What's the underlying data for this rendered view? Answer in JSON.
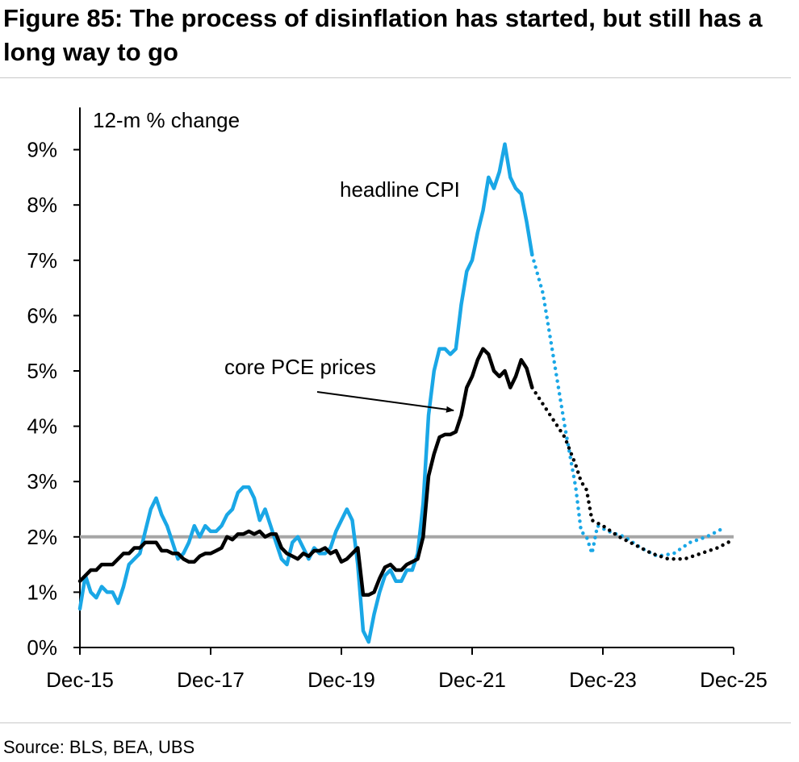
{
  "figure": {
    "title": "Figure 85: The process of disinflation has started, but still has a long way to go",
    "source": "Source: BLS, BEA, UBS"
  },
  "chart_data": {
    "type": "line",
    "unit_label": "12-m % change",
    "x_start": "2015-12",
    "x_end": "2025-12",
    "x_ticks": [
      "Dec-15",
      "Dec-17",
      "Dec-19",
      "Dec-21",
      "Dec-23",
      "Dec-25"
    ],
    "y_ticks": [
      "0%",
      "1%",
      "2%",
      "3%",
      "4%",
      "5%",
      "6%",
      "7%",
      "8%",
      "9%"
    ],
    "ylim": [
      0,
      9.5
    ],
    "reference_line": {
      "value": 2.0,
      "color": "#a6a6a6"
    },
    "colors": {
      "headline_cpi": "#1aa7e6",
      "core_pce": "#000000"
    },
    "series": [
      {
        "name": "headline CPI",
        "color": "#1aa7e6",
        "actual": [
          [
            "2015-12",
            0.7
          ],
          [
            "2016-01",
            1.3
          ],
          [
            "2016-02",
            1.0
          ],
          [
            "2016-03",
            0.9
          ],
          [
            "2016-04",
            1.1
          ],
          [
            "2016-05",
            1.0
          ],
          [
            "2016-06",
            1.0
          ],
          [
            "2016-07",
            0.8
          ],
          [
            "2016-08",
            1.1
          ],
          [
            "2016-09",
            1.5
          ],
          [
            "2016-10",
            1.6
          ],
          [
            "2016-11",
            1.7
          ],
          [
            "2016-12",
            2.1
          ],
          [
            "2017-01",
            2.5
          ],
          [
            "2017-02",
            2.7
          ],
          [
            "2017-03",
            2.4
          ],
          [
            "2017-04",
            2.2
          ],
          [
            "2017-05",
            1.9
          ],
          [
            "2017-06",
            1.6
          ],
          [
            "2017-07",
            1.7
          ],
          [
            "2017-08",
            1.9
          ],
          [
            "2017-09",
            2.2
          ],
          [
            "2017-10",
            2.0
          ],
          [
            "2017-11",
            2.2
          ],
          [
            "2017-12",
            2.1
          ],
          [
            "2018-01",
            2.1
          ],
          [
            "2018-02",
            2.2
          ],
          [
            "2018-03",
            2.4
          ],
          [
            "2018-04",
            2.5
          ],
          [
            "2018-05",
            2.8
          ],
          [
            "2018-06",
            2.9
          ],
          [
            "2018-07",
            2.9
          ],
          [
            "2018-08",
            2.7
          ],
          [
            "2018-09",
            2.3
          ],
          [
            "2018-10",
            2.5
          ],
          [
            "2018-11",
            2.2
          ],
          [
            "2018-12",
            1.9
          ],
          [
            "2019-01",
            1.6
          ],
          [
            "2019-02",
            1.5
          ],
          [
            "2019-03",
            1.9
          ],
          [
            "2019-04",
            2.0
          ],
          [
            "2019-05",
            1.8
          ],
          [
            "2019-06",
            1.6
          ],
          [
            "2019-07",
            1.8
          ],
          [
            "2019-08",
            1.7
          ],
          [
            "2019-09",
            1.7
          ],
          [
            "2019-10",
            1.8
          ],
          [
            "2019-11",
            2.1
          ],
          [
            "2019-12",
            2.3
          ],
          [
            "2020-01",
            2.5
          ],
          [
            "2020-02",
            2.3
          ],
          [
            "2020-03",
            1.5
          ],
          [
            "2020-04",
            0.3
          ],
          [
            "2020-05",
            0.1
          ],
          [
            "2020-06",
            0.6
          ],
          [
            "2020-07",
            1.0
          ],
          [
            "2020-08",
            1.3
          ],
          [
            "2020-09",
            1.4
          ],
          [
            "2020-10",
            1.2
          ],
          [
            "2020-11",
            1.2
          ],
          [
            "2020-12",
            1.4
          ],
          [
            "2021-01",
            1.4
          ],
          [
            "2021-02",
            1.7
          ],
          [
            "2021-03",
            2.6
          ],
          [
            "2021-04",
            4.2
          ],
          [
            "2021-05",
            5.0
          ],
          [
            "2021-06",
            5.4
          ],
          [
            "2021-07",
            5.4
          ],
          [
            "2021-08",
            5.3
          ],
          [
            "2021-09",
            5.4
          ],
          [
            "2021-10",
            6.2
          ],
          [
            "2021-11",
            6.8
          ],
          [
            "2021-12",
            7.0
          ],
          [
            "2022-01",
            7.5
          ],
          [
            "2022-02",
            7.9
          ],
          [
            "2022-03",
            8.5
          ],
          [
            "2022-04",
            8.3
          ],
          [
            "2022-05",
            8.6
          ],
          [
            "2022-06",
            9.1
          ],
          [
            "2022-07",
            8.5
          ],
          [
            "2022-08",
            8.3
          ],
          [
            "2022-09",
            8.2
          ],
          [
            "2022-10",
            7.7
          ],
          [
            "2022-11",
            7.1
          ]
        ],
        "forecast": [
          [
            "2022-11",
            7.1
          ],
          [
            "2023-01",
            6.4
          ],
          [
            "2023-03",
            5.2
          ],
          [
            "2023-05",
            4.0
          ],
          [
            "2023-07",
            2.9
          ],
          [
            "2023-08",
            2.1
          ],
          [
            "2023-09",
            2.0
          ],
          [
            "2023-10",
            1.7
          ],
          [
            "2023-11",
            2.2
          ],
          [
            "2024-01",
            2.1
          ],
          [
            "2024-04",
            2.0
          ],
          [
            "2024-07",
            1.8
          ],
          [
            "2024-10",
            1.65
          ],
          [
            "2025-01",
            1.7
          ],
          [
            "2025-04",
            1.9
          ],
          [
            "2025-07",
            2.0
          ],
          [
            "2025-10",
            2.15
          ]
        ]
      },
      {
        "name": "core PCE prices",
        "color": "#000000",
        "actual": [
          [
            "2015-12",
            1.2
          ],
          [
            "2016-01",
            1.3
          ],
          [
            "2016-02",
            1.4
          ],
          [
            "2016-03",
            1.4
          ],
          [
            "2016-04",
            1.5
          ],
          [
            "2016-05",
            1.5
          ],
          [
            "2016-06",
            1.5
          ],
          [
            "2016-07",
            1.6
          ],
          [
            "2016-08",
            1.7
          ],
          [
            "2016-09",
            1.7
          ],
          [
            "2016-10",
            1.8
          ],
          [
            "2016-11",
            1.8
          ],
          [
            "2016-12",
            1.9
          ],
          [
            "2017-01",
            1.9
          ],
          [
            "2017-02",
            1.9
          ],
          [
            "2017-03",
            1.75
          ],
          [
            "2017-04",
            1.75
          ],
          [
            "2017-05",
            1.7
          ],
          [
            "2017-06",
            1.7
          ],
          [
            "2017-07",
            1.6
          ],
          [
            "2017-08",
            1.55
          ],
          [
            "2017-09",
            1.55
          ],
          [
            "2017-10",
            1.65
          ],
          [
            "2017-11",
            1.7
          ],
          [
            "2017-12",
            1.7
          ],
          [
            "2018-01",
            1.75
          ],
          [
            "2018-02",
            1.8
          ],
          [
            "2018-03",
            2.0
          ],
          [
            "2018-04",
            1.95
          ],
          [
            "2018-05",
            2.05
          ],
          [
            "2018-06",
            2.05
          ],
          [
            "2018-07",
            2.1
          ],
          [
            "2018-08",
            2.05
          ],
          [
            "2018-09",
            2.1
          ],
          [
            "2018-10",
            2.0
          ],
          [
            "2018-11",
            2.05
          ],
          [
            "2018-12",
            2.05
          ],
          [
            "2019-01",
            1.8
          ],
          [
            "2019-02",
            1.7
          ],
          [
            "2019-03",
            1.65
          ],
          [
            "2019-04",
            1.6
          ],
          [
            "2019-05",
            1.7
          ],
          [
            "2019-06",
            1.65
          ],
          [
            "2019-07",
            1.75
          ],
          [
            "2019-08",
            1.75
          ],
          [
            "2019-09",
            1.8
          ],
          [
            "2019-10",
            1.7
          ],
          [
            "2019-11",
            1.75
          ],
          [
            "2019-12",
            1.55
          ],
          [
            "2020-01",
            1.6
          ],
          [
            "2020-02",
            1.7
          ],
          [
            "2020-03",
            1.8
          ],
          [
            "2020-04",
            0.95
          ],
          [
            "2020-05",
            0.95
          ],
          [
            "2020-06",
            1.0
          ],
          [
            "2020-07",
            1.25
          ],
          [
            "2020-08",
            1.45
          ],
          [
            "2020-09",
            1.5
          ],
          [
            "2020-10",
            1.4
          ],
          [
            "2020-11",
            1.4
          ],
          [
            "2020-12",
            1.5
          ],
          [
            "2021-01",
            1.55
          ],
          [
            "2021-02",
            1.6
          ],
          [
            "2021-03",
            2.0
          ],
          [
            "2021-04",
            3.1
          ],
          [
            "2021-05",
            3.5
          ],
          [
            "2021-06",
            3.8
          ],
          [
            "2021-07",
            3.85
          ],
          [
            "2021-08",
            3.85
          ],
          [
            "2021-09",
            3.9
          ],
          [
            "2021-10",
            4.2
          ],
          [
            "2021-11",
            4.7
          ],
          [
            "2021-12",
            4.9
          ],
          [
            "2022-01",
            5.2
          ],
          [
            "2022-02",
            5.4
          ],
          [
            "2022-03",
            5.3
          ],
          [
            "2022-04",
            5.0
          ],
          [
            "2022-05",
            4.9
          ],
          [
            "2022-06",
            5.0
          ],
          [
            "2022-07",
            4.7
          ],
          [
            "2022-08",
            4.9
          ],
          [
            "2022-09",
            5.2
          ],
          [
            "2022-10",
            5.05
          ],
          [
            "2022-11",
            4.7
          ]
        ],
        "forecast": [
          [
            "2022-11",
            4.7
          ],
          [
            "2023-02",
            4.25
          ],
          [
            "2023-05",
            3.8
          ],
          [
            "2023-07",
            3.3
          ],
          [
            "2023-08",
            3.0
          ],
          [
            "2023-09",
            2.85
          ],
          [
            "2023-10",
            2.3
          ],
          [
            "2023-12",
            2.2
          ],
          [
            "2024-03",
            2.0
          ],
          [
            "2024-06",
            1.85
          ],
          [
            "2024-09",
            1.7
          ],
          [
            "2024-12",
            1.6
          ],
          [
            "2025-03",
            1.6
          ],
          [
            "2025-06",
            1.7
          ],
          [
            "2025-09",
            1.8
          ],
          [
            "2025-12",
            1.95
          ]
        ]
      }
    ],
    "annotations": [
      {
        "text": "headline CPI",
        "series": "headline CPI"
      },
      {
        "text": "core PCE prices",
        "series": "core PCE prices",
        "arrow": true
      }
    ]
  }
}
